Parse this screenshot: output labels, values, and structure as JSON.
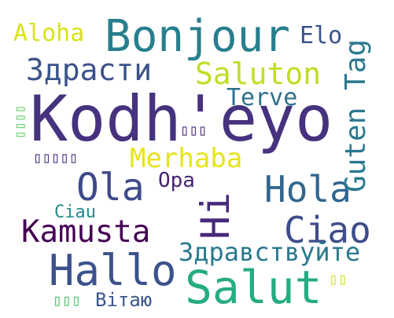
{
  "cloud": {
    "background": "#ffffff",
    "words": [
      {
        "text": "Kodh'eyo",
        "color": "#46327e"
      },
      {
        "text": "Bonjour",
        "color": "#277f8e"
      },
      {
        "text": "Salut",
        "color": "#25ac82"
      },
      {
        "text": "Hallo",
        "color": "#3b528b"
      },
      {
        "text": "Hola",
        "color": "#31668e"
      },
      {
        "text": "Ola",
        "color": "#3e4a89"
      },
      {
        "text": "Hi",
        "color": "#472a7a"
      },
      {
        "text": "Ciao",
        "color": "#3e4c8a"
      },
      {
        "text": "Kamusta",
        "color": "#440154"
      },
      {
        "text": "Здрасти",
        "color": "#3b528b"
      },
      {
        "text": "Saluton",
        "color": "#bddf26"
      },
      {
        "text": "Guten Tag",
        "color": "#2a788e"
      },
      {
        "text": "Merhaba",
        "color": "#e7e419"
      },
      {
        "text": "Здравствуйте",
        "color": "#29798e"
      },
      {
        "text": "Terve",
        "color": "#2d718e"
      },
      {
        "text": "Aloha",
        "color": "#d8e219"
      },
      {
        "text": "Elo",
        "color": "#3a538b"
      },
      {
        "text": "Opa",
        "color": "#482475"
      },
      {
        "text": "Ciau",
        "color": "#23898e"
      },
      {
        "text": "Вітаю",
        "color": "#39568c"
      },
      {
        "text": "▯▯▯▯▯",
        "color": "#472d7b"
      },
      {
        "text": "▯▯▯▯",
        "color": "#5ec962"
      },
      {
        "text": "▯▯▯",
        "color": "#482878"
      },
      {
        "text": "▯▯▯",
        "color": "#4ac16d"
      },
      {
        "text": "▯▯",
        "color": "#d2e21b"
      }
    ]
  }
}
